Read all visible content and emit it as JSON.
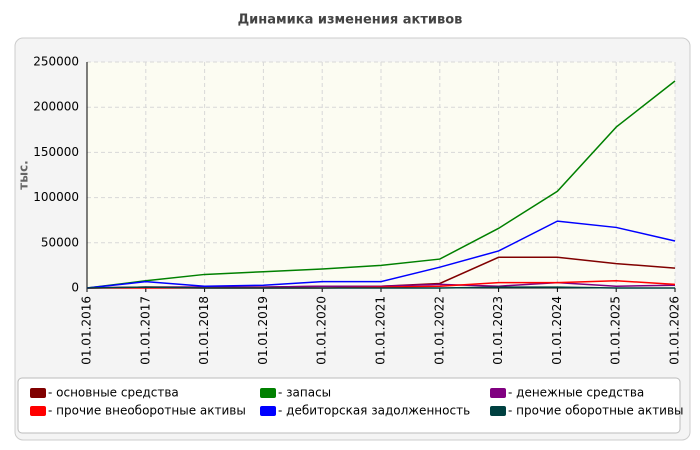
{
  "chart_data": {
    "type": "line",
    "title": "Динамика изменения активов",
    "y_label": "тыс.",
    "categories": [
      "01.01.2016",
      "01.01.2017",
      "01.01.2018",
      "01.01.2019",
      "01.01.2020",
      "01.01.2021",
      "01.01.2022",
      "01.01.2023",
      "01.01.2024",
      "01.01.2025",
      "01.01.2026"
    ],
    "series": [
      {
        "name": "- основные средства",
        "color": "#800000",
        "values": [
          0,
          1000,
          1000,
          1000,
          2000,
          2000,
          5000,
          34000,
          34000,
          27000,
          22000
        ]
      },
      {
        "name": "- запасы",
        "color": "#008000",
        "values": [
          0,
          8000,
          15000,
          18000,
          21000,
          25000,
          32000,
          66000,
          107000,
          178000,
          229000
        ]
      },
      {
        "name": "- денежные средства",
        "color": "#800080",
        "values": [
          0,
          1000,
          1000,
          1000,
          2000,
          2000,
          4000,
          2000,
          6000,
          2000,
          3000
        ]
      },
      {
        "name": "- прочие внеоборотные активы",
        "color": "#ff0000",
        "values": [
          0,
          0,
          0,
          0,
          0,
          1000,
          2000,
          6000,
          6000,
          8000,
          4000
        ]
      },
      {
        "name": "- дебиторская задолженность",
        "color": "#0000ff",
        "values": [
          0,
          7000,
          2000,
          3000,
          7000,
          7000,
          23000,
          41000,
          74000,
          67000,
          52000
        ]
      },
      {
        "name": "- прочие оборотные активы",
        "color": "#004040",
        "values": [
          0,
          1000,
          0,
          0,
          0,
          0,
          0,
          1000,
          1000,
          0,
          0
        ]
      }
    ],
    "ylim": [
      0,
      250000
    ],
    "yticks": [
      0,
      50000,
      100000,
      150000,
      200000,
      250000
    ],
    "grid": true,
    "legend": "bottom"
  }
}
